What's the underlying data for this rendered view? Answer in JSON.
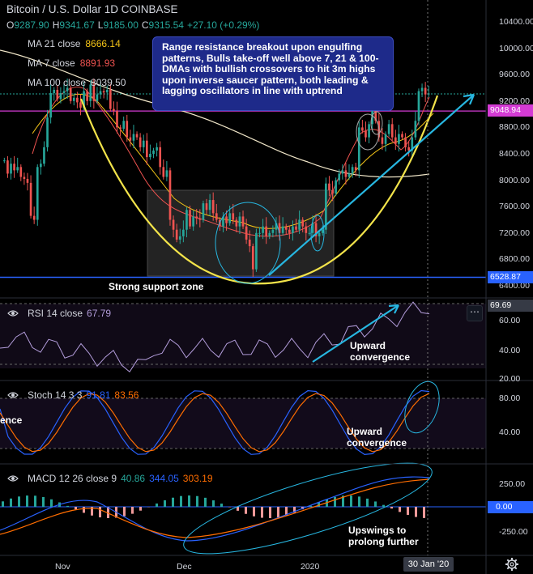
{
  "header": {
    "title": "Bitcoin / U.S. Dollar  1D  COINBASE",
    "ohlc": [
      {
        "k": "O",
        "v": "9287.90"
      },
      {
        "k": "H",
        "v": "9341.67"
      },
      {
        "k": "L",
        "v": "9185.00"
      },
      {
        "k": "C",
        "v": "9315.54"
      },
      {
        "k": "",
        "v": "+27.10 (+0.29%)"
      }
    ]
  },
  "mas": [
    {
      "label": "MA 21 close",
      "value": "8666.14",
      "color": "#f5c518"
    },
    {
      "label": "MA 7 close",
      "value": "8891.93",
      "color": "#ef5350"
    },
    {
      "label": "MA 100 close",
      "value": "8039.50",
      "color": "#f0e6c8"
    }
  ],
  "callout": "Range resistance breakout upon engulfing patterns, Bulls take-off well above 7, 21 & 100-DMAs with bullish crossovers to hit 3m highs upon inverse saucer pattern, both leading & lagging oscillators in line with uptrend",
  "annotations": {
    "support": "Strong support zone",
    "rsi_conv": "Upward convergence",
    "stoch_conv": "Upward convergence",
    "stoch_left": "ence",
    "macd": "Upswings to prolong further"
  },
  "indicators": {
    "rsi": {
      "label": "RSI 14 close",
      "value": "67.79",
      "tag": "69.69",
      "ticks": [
        "60.00",
        "40.00",
        "20.00"
      ]
    },
    "stoch": {
      "label": "Stoch 14 3 3",
      "k": "91.81",
      "d": "83.56",
      "ticks": [
        "80.00",
        "40.00"
      ]
    },
    "macd": {
      "label": "MACD 12 26 close 9",
      "hist": "40.86",
      "macd": "344.05",
      "signal": "303.19",
      "ticks": [
        "250.00",
        "-250.00"
      ],
      "zero_tag": "0.00"
    }
  },
  "price_axis": [
    "10400.00",
    "10000.00",
    "9600.00",
    "9200.00",
    "8800.00",
    "8400.00",
    "8000.00",
    "7600.00",
    "7200.00",
    "6800.00",
    "6400.00"
  ],
  "price_tags": {
    "resistance": "9048.94",
    "support": "6528.87",
    "last": "9315.54"
  },
  "x_axis": [
    "Nov",
    "Dec",
    "2020"
  ],
  "date_tag": "30 Jan '20",
  "colors": {
    "up": "#26a69a",
    "down": "#ef5350",
    "saucer": "#f2e34a",
    "trend": "#27b6e0",
    "resistance": "#d43bd4",
    "support": "#2962ff",
    "box": "#2a2a2a"
  },
  "chart_data": {
    "type": "candlestick",
    "ylim": [
      6300,
      10650
    ],
    "series": [
      {
        "name": "MA 21 close",
        "last": 8666.14
      },
      {
        "name": "MA 7 close",
        "last": 8891.93
      },
      {
        "name": "MA 100 close",
        "last": 8039.5
      }
    ],
    "levels": {
      "resistance": 9048.94,
      "support": 6528.87
    },
    "closes": [
      8300,
      8100,
      8250,
      8150,
      8200,
      8050,
      8020,
      7960,
      7460,
      7400,
      8200,
      8250,
      8500,
      8950,
      9320,
      9370,
      9230,
      9320,
      9350,
      9400,
      9200,
      9250,
      9180,
      9100,
      9350,
      9200,
      9450,
      9200,
      9300,
      9350,
      9330,
      9370,
      9080,
      9050,
      8800,
      8780,
      8900,
      8650,
      8600,
      8700,
      8650,
      8500,
      8600,
      8350,
      8400,
      8450,
      8500,
      8200,
      8050,
      8150,
      7400,
      7250,
      7100,
      7150,
      7250,
      7550,
      7300,
      7450,
      7420,
      7400,
      7650,
      7550,
      7700,
      7500,
      7400,
      7300,
      7450,
      7350,
      7500,
      7400,
      7300,
      7450,
      7300,
      7100,
      7000,
      6650,
      7200,
      7200,
      7300,
      7150,
      7200,
      7250,
      7350,
      7200,
      7300,
      7250,
      7200,
      7300,
      7250,
      7400,
      7300,
      7200,
      7200,
      7350,
      7150,
      7200,
      7250,
      7950,
      7850,
      7800,
      8000,
      8100,
      8150,
      8050,
      8100,
      8200,
      8150,
      8800,
      8750,
      8650,
      8850,
      9100,
      8900,
      8650,
      8550,
      8700,
      8850,
      8650,
      8550,
      8700,
      8650,
      8500,
      8450,
      8650,
      8900,
      9350,
      9400,
      9300,
      9315
    ]
  }
}
